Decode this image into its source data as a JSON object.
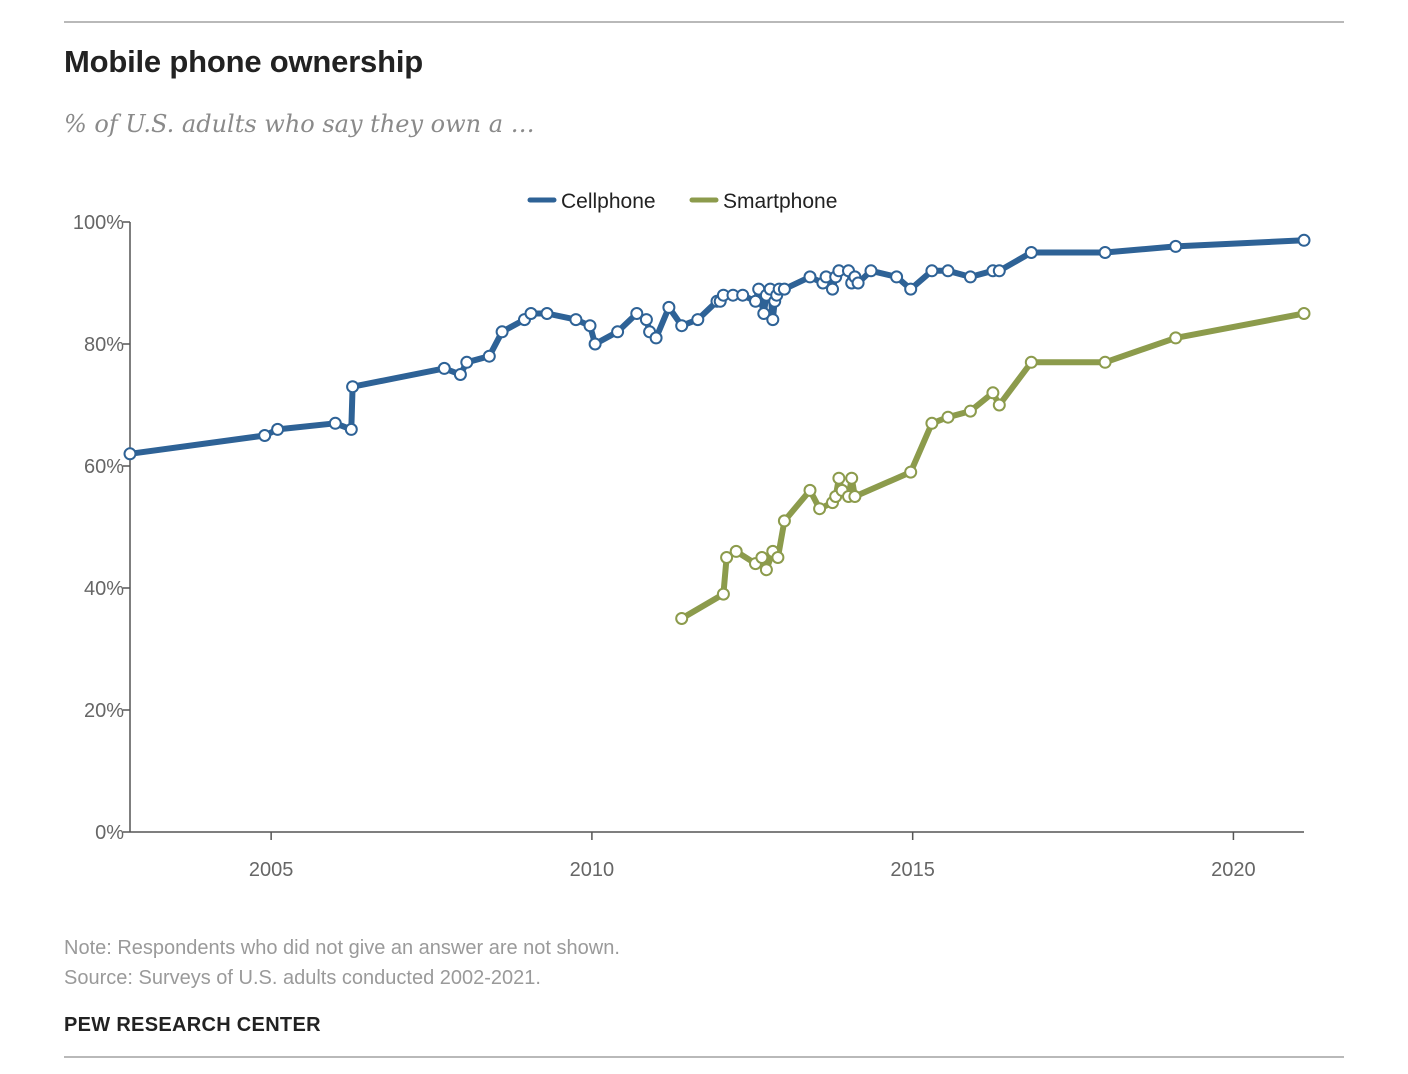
{
  "header": {
    "title": "Mobile phone ownership",
    "subtitle": "% of U.S. adults who say they own a …"
  },
  "footer": {
    "note": "Note: Respondents who did not give an answer are not shown.",
    "source": "Source: Surveys of U.S. adults conducted 2002-2021.",
    "brand": "PEW RESEARCH CENTER"
  },
  "chart_data": {
    "type": "line",
    "title": "Mobile phone ownership",
    "subtitle": "% of U.S. adults who say they own a …",
    "xlabel": "",
    "ylabel": "",
    "xlim": [
      2002.8,
      2021.1
    ],
    "ylim": [
      0,
      100
    ],
    "x_ticks": [
      2005,
      2010,
      2015,
      2020
    ],
    "x_tick_labels": [
      "2005",
      "2010",
      "2015",
      "2020"
    ],
    "y_ticks": [
      0,
      20,
      40,
      60,
      80,
      100
    ],
    "y_tick_labels": [
      "0%",
      "20%",
      "40%",
      "60%",
      "80%",
      "100%"
    ],
    "grid": false,
    "legend_position": "top-center",
    "series": [
      {
        "name": "Cellphone",
        "color": "#2e6296",
        "x": [
          2002.8,
          2004.9,
          2005.1,
          2006.0,
          2006.25,
          2006.27,
          2007.7,
          2007.95,
          2008.05,
          2008.4,
          2008.6,
          2008.95,
          2009.05,
          2009.3,
          2009.75,
          2009.97,
          2010.05,
          2010.4,
          2010.7,
          2010.85,
          2010.9,
          2011.0,
          2011.2,
          2011.4,
          2011.65,
          2011.95,
          2012.0,
          2012.05,
          2012.2,
          2012.35,
          2012.55,
          2012.6,
          2012.68,
          2012.72,
          2012.78,
          2012.82,
          2012.85,
          2012.88,
          2012.92,
          2013.0,
          2013.4,
          2013.6,
          2013.65,
          2013.75,
          2013.8,
          2013.85,
          2014.0,
          2014.05,
          2014.1,
          2014.15,
          2014.35,
          2014.75,
          2014.97,
          2015.3,
          2015.55,
          2015.9,
          2016.25,
          2016.35,
          2016.85,
          2018.0,
          2019.1,
          2021.1
        ],
        "values": [
          62,
          65,
          66,
          67,
          66,
          73,
          76,
          75,
          77,
          78,
          82,
          84,
          85,
          85,
          84,
          83,
          80,
          82,
          85,
          84,
          82,
          81,
          86,
          83,
          84,
          87,
          87,
          88,
          88,
          88,
          87,
          89,
          85,
          88,
          89,
          84,
          87,
          88,
          89,
          89,
          91,
          90,
          91,
          89,
          91,
          92,
          92,
          90,
          91,
          90,
          92,
          91,
          89,
          92,
          92,
          91,
          92,
          92,
          95,
          95,
          96,
          97
        ]
      },
      {
        "name": "Smartphone",
        "color": "#8c9b4c",
        "x": [
          2011.4,
          2012.05,
          2012.1,
          2012.25,
          2012.55,
          2012.65,
          2012.72,
          2012.82,
          2012.9,
          2013.0,
          2013.4,
          2013.55,
          2013.75,
          2013.8,
          2013.85,
          2013.9,
          2014.0,
          2014.05,
          2014.1,
          2014.97,
          2015.3,
          2015.55,
          2015.9,
          2016.25,
          2016.35,
          2016.85,
          2018.0,
          2019.1,
          2021.1
        ],
        "values": [
          35,
          39,
          45,
          46,
          44,
          45,
          43,
          46,
          45,
          51,
          56,
          53,
          54,
          55,
          58,
          56,
          55,
          58,
          55,
          59,
          67,
          68,
          69,
          72,
          70,
          77,
          77,
          81,
          85
        ]
      }
    ]
  }
}
